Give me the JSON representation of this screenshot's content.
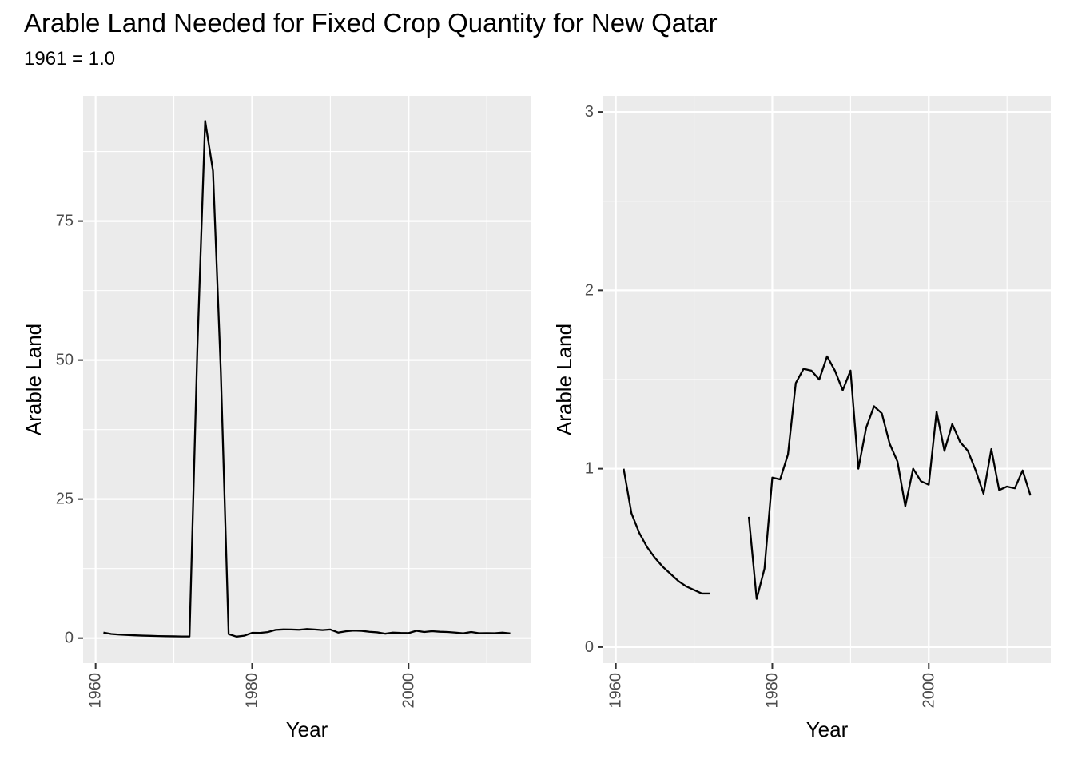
{
  "title": "Arable Land Needed for Fixed Crop Quantity for New Qatar",
  "subtitle": "1961 = 1.0",
  "chart_data": [
    {
      "type": "line",
      "xlabel": "Year",
      "ylabel": "Arable Land",
      "xlim": [
        1958.4,
        2015.6
      ],
      "ylim": [
        -4.5,
        97.5
      ],
      "x_ticks": [
        1960,
        1980,
        2000
      ],
      "x_tick_labels": [
        "1960",
        "1980",
        "2000"
      ],
      "y_ticks": [
        0,
        25,
        50,
        75
      ],
      "y_tick_labels": [
        "0",
        "25",
        "50",
        "75"
      ],
      "grid": true,
      "series": [
        {
          "x": [
            1961,
            1962,
            1963,
            1964,
            1965,
            1966,
            1967,
            1968,
            1969,
            1970,
            1971,
            1972,
            1973,
            1974,
            1975,
            1976,
            1977,
            1978,
            1979,
            1980,
            1981,
            1982,
            1983,
            1984,
            1985,
            1986,
            1987,
            1988,
            1989,
            1990,
            1991,
            1992,
            1993,
            1994,
            1995,
            1996,
            1997,
            1998,
            1999,
            2000,
            2001,
            2002,
            2003,
            2004,
            2005,
            2006,
            2007,
            2008,
            2009,
            2010,
            2011,
            2012,
            2013
          ],
          "y": [
            1.0,
            0.75,
            0.64,
            0.56,
            0.5,
            0.45,
            0.41,
            0.37,
            0.34,
            0.32,
            0.3,
            0.3,
            52,
            93,
            84,
            48,
            0.73,
            0.27,
            0.44,
            0.95,
            0.94,
            1.08,
            1.48,
            1.56,
            1.55,
            1.5,
            1.63,
            1.55,
            1.44,
            1.55,
            1.0,
            1.23,
            1.35,
            1.31,
            1.14,
            1.04,
            0.79,
            1.0,
            0.93,
            0.91,
            1.32,
            1.1,
            1.25,
            1.15,
            1.1,
            0.99,
            0.86,
            1.11,
            0.88,
            0.9,
            0.89,
            0.99,
            0.85
          ]
        }
      ]
    },
    {
      "type": "line",
      "xlabel": "Year",
      "ylabel": "Arable Land",
      "xlim": [
        1958.4,
        2015.6
      ],
      "ylim": [
        -0.09,
        3.09
      ],
      "x_ticks": [
        1960,
        1980,
        2000
      ],
      "x_tick_labels": [
        "1960",
        "1980",
        "2000"
      ],
      "y_ticks": [
        0,
        1,
        2,
        3
      ],
      "y_tick_labels": [
        "0",
        "1",
        "2",
        "3"
      ],
      "grid": true,
      "series": [
        {
          "x": [
            1961,
            1962,
            1963,
            1964,
            1965,
            1966,
            1967,
            1968,
            1969,
            1970,
            1971,
            1972,
            1973,
            1974,
            1975,
            1976,
            1977,
            1978,
            1979,
            1980,
            1981,
            1982,
            1983,
            1984,
            1985,
            1986,
            1987,
            1988,
            1989,
            1990,
            1991,
            1992,
            1993,
            1994,
            1995,
            1996,
            1997,
            1998,
            1999,
            2000,
            2001,
            2002,
            2003,
            2004,
            2005,
            2006,
            2007,
            2008,
            2009,
            2010,
            2011,
            2012,
            2013
          ],
          "y": [
            1.0,
            0.75,
            0.64,
            0.56,
            0.5,
            0.45,
            0.41,
            0.37,
            0.34,
            0.32,
            0.3,
            0.3,
            null,
            null,
            null,
            null,
            0.73,
            0.27,
            0.44,
            0.95,
            0.94,
            1.08,
            1.48,
            1.56,
            1.55,
            1.5,
            1.63,
            1.55,
            1.44,
            1.55,
            1.0,
            1.23,
            1.35,
            1.31,
            1.14,
            1.04,
            0.79,
            1.0,
            0.93,
            0.91,
            1.32,
            1.1,
            1.25,
            1.15,
            1.1,
            0.99,
            0.86,
            1.11,
            0.88,
            0.9,
            0.89,
            0.99,
            0.85
          ]
        }
      ]
    }
  ]
}
